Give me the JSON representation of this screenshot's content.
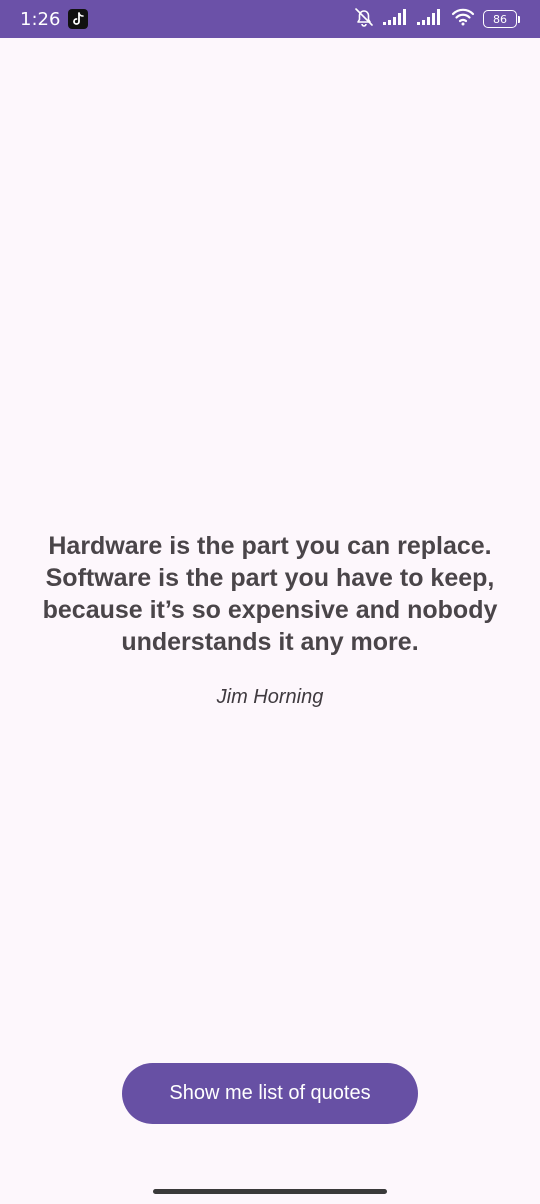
{
  "status_bar": {
    "time": "1:26",
    "battery_level": "86",
    "icons": [
      "tiktok-icon",
      "bell-off-icon",
      "signal-icon",
      "signal-icon",
      "wifi-icon",
      "battery-icon"
    ]
  },
  "quote": {
    "text": "Hardware is the part you can replace. Software is the part you have to keep, because it’s so expensive and nobody understands it any more.",
    "author": "Jim Horning"
  },
  "actions": {
    "show_list_label": "Show me list of quotes"
  },
  "colors": {
    "status_bar": "#6b51a8",
    "background": "#fdf7fc",
    "primary": "#6750a4",
    "quote_text": "#4a4549"
  }
}
